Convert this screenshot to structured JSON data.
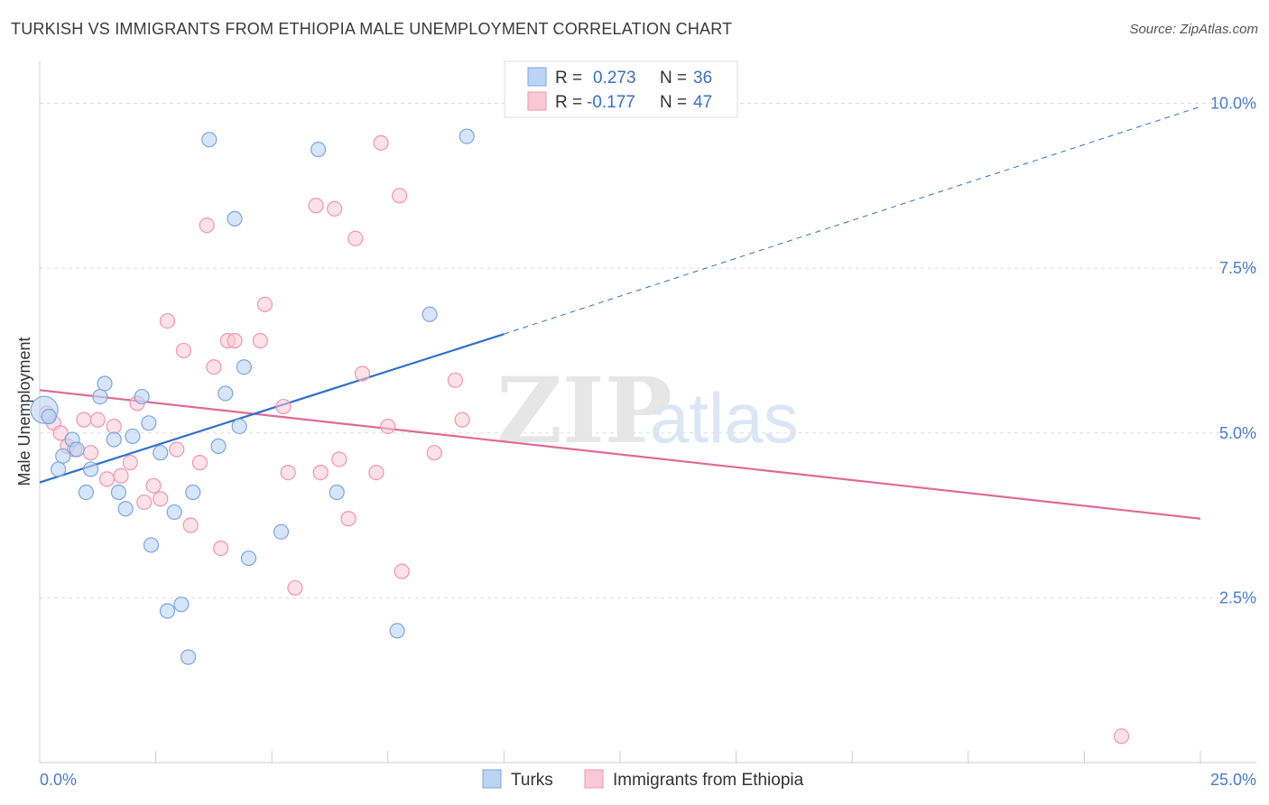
{
  "title": "TURKISH VS IMMIGRANTS FROM ETHIOPIA MALE UNEMPLOYMENT CORRELATION CHART",
  "source": "Source: ZipAtlas.com",
  "colors": {
    "turks_fill": "#bcd4f4",
    "turks_stroke": "#7aa6e0",
    "turks_line": "#2f6fce",
    "eth_fill": "#f8c8d6",
    "eth_stroke": "#ef95b0",
    "eth_line": "#e06a95",
    "grid": "#dddddd",
    "axis_label": "#4a7bd0"
  },
  "legend": {
    "r_label": "R =",
    "n_label": "N =",
    "turks": {
      "r": "0.273",
      "n": "36"
    },
    "ethiopia": {
      "r": "-0.177",
      "n": "47"
    }
  },
  "chart_data": {
    "type": "scatter",
    "title": "TURKISH VS IMMIGRANTS FROM ETHIOPIA MALE UNEMPLOYMENT CORRELATION CHART",
    "xlabel": "",
    "ylabel": "Male Unemployment",
    "xlim": [
      0,
      25
    ],
    "ylim": [
      0,
      10.5
    ],
    "x_tick_labels": [
      "0.0%",
      "25.0%"
    ],
    "y_ticks": [
      2.5,
      5.0,
      7.5,
      10.0
    ],
    "y_tick_labels": [
      "2.5%",
      "5.0%",
      "7.5%",
      "10.0%"
    ],
    "grid": true,
    "watermark": "ZIPatlas",
    "series": [
      {
        "name": "Turks",
        "points": [
          [
            0.1,
            5.35
          ],
          [
            0.2,
            5.25
          ],
          [
            0.4,
            4.45
          ],
          [
            0.5,
            4.65
          ],
          [
            0.7,
            4.9
          ],
          [
            0.8,
            4.75
          ],
          [
            1.0,
            4.1
          ],
          [
            1.1,
            4.45
          ],
          [
            1.3,
            5.55
          ],
          [
            1.4,
            5.75
          ],
          [
            1.6,
            4.9
          ],
          [
            1.7,
            4.1
          ],
          [
            1.85,
            3.85
          ],
          [
            2.0,
            4.95
          ],
          [
            2.2,
            5.55
          ],
          [
            2.35,
            5.15
          ],
          [
            2.4,
            3.3
          ],
          [
            2.6,
            4.7
          ],
          [
            2.75,
            2.3
          ],
          [
            2.9,
            3.8
          ],
          [
            3.05,
            2.4
          ],
          [
            3.2,
            1.6
          ],
          [
            3.3,
            4.1
          ],
          [
            3.65,
            9.45
          ],
          [
            3.85,
            4.8
          ],
          [
            4.0,
            5.6
          ],
          [
            4.2,
            8.25
          ],
          [
            4.3,
            5.1
          ],
          [
            4.4,
            6.0
          ],
          [
            4.5,
            3.1
          ],
          [
            5.2,
            3.5
          ],
          [
            6.0,
            9.3
          ],
          [
            6.4,
            4.1
          ],
          [
            7.7,
            2.0
          ],
          [
            8.4,
            6.8
          ],
          [
            9.2,
            9.5
          ]
        ]
      },
      {
        "name": "Immigrants from Ethiopia",
        "points": [
          [
            0.15,
            5.3
          ],
          [
            0.3,
            5.15
          ],
          [
            0.45,
            5.0
          ],
          [
            0.6,
            4.8
          ],
          [
            0.75,
            4.75
          ],
          [
            0.95,
            5.2
          ],
          [
            1.1,
            4.7
          ],
          [
            1.25,
            5.2
          ],
          [
            1.45,
            4.3
          ],
          [
            1.6,
            5.1
          ],
          [
            1.75,
            4.35
          ],
          [
            1.95,
            4.55
          ],
          [
            2.1,
            5.45
          ],
          [
            2.25,
            3.95
          ],
          [
            2.45,
            4.2
          ],
          [
            2.6,
            4.0
          ],
          [
            2.75,
            6.7
          ],
          [
            2.95,
            4.75
          ],
          [
            3.1,
            6.25
          ],
          [
            3.25,
            3.6
          ],
          [
            3.45,
            4.55
          ],
          [
            3.6,
            8.15
          ],
          [
            3.75,
            6.0
          ],
          [
            3.9,
            3.25
          ],
          [
            4.05,
            6.4
          ],
          [
            4.2,
            6.4
          ],
          [
            4.75,
            6.4
          ],
          [
            4.85,
            6.95
          ],
          [
            5.25,
            5.4
          ],
          [
            5.35,
            4.4
          ],
          [
            5.5,
            2.65
          ],
          [
            5.95,
            8.45
          ],
          [
            6.05,
            4.4
          ],
          [
            6.35,
            8.4
          ],
          [
            6.45,
            4.6
          ],
          [
            6.65,
            3.7
          ],
          [
            6.8,
            7.95
          ],
          [
            6.95,
            5.9
          ],
          [
            7.25,
            4.4
          ],
          [
            7.35,
            9.4
          ],
          [
            7.5,
            5.1
          ],
          [
            7.75,
            8.6
          ],
          [
            7.8,
            2.9
          ],
          [
            8.5,
            4.7
          ],
          [
            8.95,
            5.8
          ],
          [
            9.1,
            5.2
          ],
          [
            23.3,
            0.4
          ]
        ]
      }
    ],
    "trendlines": [
      {
        "series": "Turks",
        "x0": 0,
        "y0": 4.25,
        "x1": 10.0,
        "y1": 6.5,
        "dashed_to_x": 25.0,
        "dashed_to_y": 9.95
      },
      {
        "series": "Immigrants from Ethiopia",
        "x0": 0,
        "y0": 5.65,
        "x1": 25.0,
        "y1": 3.7
      }
    ]
  },
  "bottom_legend": {
    "turks": "Turks",
    "ethiopia": "Immigrants from Ethiopia"
  }
}
